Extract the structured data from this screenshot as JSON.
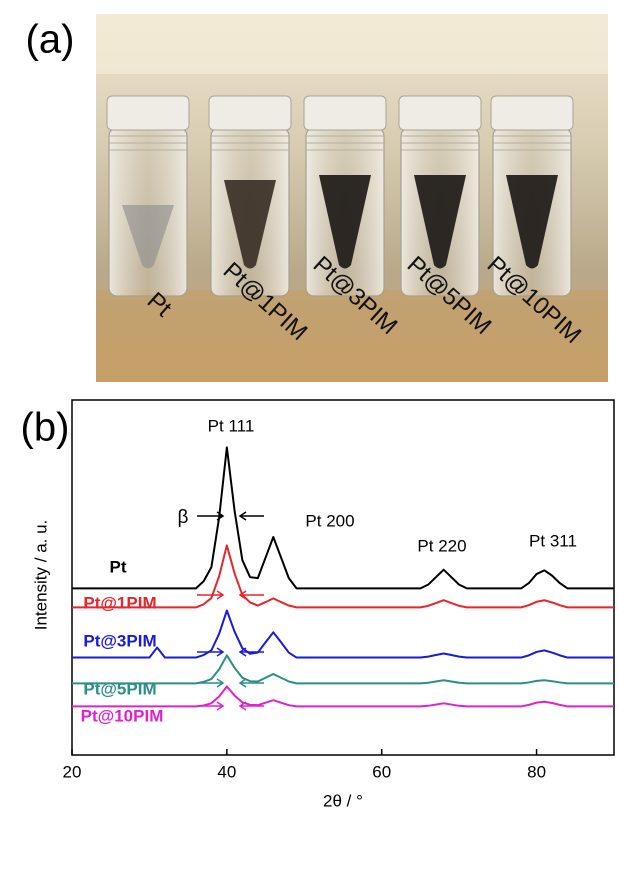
{
  "panel_labels": [
    "(a)",
    "(b)"
  ],
  "photo": {
    "labels": [
      "Pt",
      "Pt@1PIM",
      "Pt@3PIM",
      "Pt@5PIM",
      "Pt@10PIM"
    ]
  },
  "chart_data": {
    "type": "line",
    "x_label": "2θ / °",
    "y_label": "Intensity / a. u.",
    "annotations": [
      "Pt 111",
      "β",
      "Pt 200",
      "Pt 220",
      "Pt 311"
    ],
    "xlim": [
      20,
      90
    ],
    "xticks": [
      20,
      40,
      60,
      80
    ],
    "ylim": [
      -13,
      101
    ],
    "x": [
      20,
      21,
      22,
      23,
      24,
      25,
      26,
      27,
      28,
      29,
      30,
      31,
      32,
      33,
      34,
      35,
      36,
      37,
      38,
      39,
      40,
      41,
      42,
      43,
      44,
      45,
      46,
      47,
      48,
      49,
      50,
      51,
      52,
      53,
      54,
      55,
      56,
      57,
      58,
      59,
      60,
      61,
      62,
      63,
      64,
      65,
      66,
      67,
      68,
      69,
      70,
      71,
      72,
      73,
      74,
      75,
      76,
      77,
      78,
      79,
      80,
      81,
      82,
      83,
      84,
      85,
      86,
      87,
      88,
      89,
      90
    ],
    "series": [
      {
        "name": "Pt",
        "color": "#000000",
        "values": [
          40.5,
          40.5,
          40.5,
          40.5,
          40.5,
          40.5,
          40.5,
          40.5,
          40.5,
          40.5,
          40.5,
          40.5,
          40.5,
          40.5,
          40.5,
          40.5,
          40.5,
          42.8,
          47.3,
          63.2,
          85.8,
          65.4,
          49.6,
          44.1,
          43.8,
          50.4,
          57,
          50.4,
          43.8,
          40.5,
          40.5,
          40.5,
          40.5,
          40.5,
          40.5,
          40.5,
          40.5,
          40.5,
          40.5,
          40.5,
          40.5,
          40.5,
          40.5,
          40.5,
          40.5,
          40.5,
          41.7,
          44.1,
          46.5,
          44.1,
          41.7,
          40.5,
          40.5,
          40.5,
          40.5,
          40.5,
          40.5,
          40.5,
          40.5,
          42.2,
          45.1,
          46.3,
          44.6,
          42.2,
          40.5,
          40.5,
          40.5,
          40.5,
          40.5,
          40.5,
          40.5
        ]
      },
      {
        "name": "Pt@1PIM",
        "color": "#e8252a",
        "values": [
          34.4,
          34.4,
          34.4,
          34.4,
          34.4,
          34.4,
          34.4,
          34.4,
          34.4,
          34.4,
          34.4,
          34.4,
          34.4,
          34.4,
          34.4,
          34.4,
          34.4,
          35.4,
          37.4,
          44.4,
          54.3,
          45.3,
          38.4,
          36.0,
          35.0,
          36.1,
          37.3,
          36.1,
          35.0,
          34.4,
          34.4,
          34.4,
          34.4,
          34.4,
          34.4,
          34.4,
          34.4,
          34.4,
          34.4,
          34.4,
          34.4,
          34.4,
          34.4,
          34.4,
          34.4,
          34.4,
          34.9,
          35.8,
          36.7,
          35.8,
          34.9,
          34.4,
          34.4,
          34.4,
          34.4,
          34.4,
          34.4,
          34.4,
          34.4,
          35.1,
          36.2,
          36.7,
          36.0,
          35.1,
          34.4,
          34.4,
          34.4,
          34.4,
          34.4,
          34.4,
          34.4
        ]
      },
      {
        "name": "Pt@3PIM",
        "color": "#1a1adb",
        "values": [
          18.3,
          18.3,
          18.3,
          18.3,
          18.3,
          18.3,
          18.3,
          18.3,
          18.3,
          18.3,
          18.3,
          21.5,
          18.3,
          18.3,
          18.3,
          18.3,
          18.3,
          19.1,
          20.6,
          25.9,
          33.4,
          26.6,
          21.3,
          19.5,
          19.9,
          23.2,
          26.4,
          23.2,
          19.9,
          18.3,
          18.3,
          18.3,
          18.3,
          18.3,
          18.3,
          18.3,
          18.3,
          18.3,
          18.3,
          18.3,
          18.3,
          18.3,
          18.3,
          18.3,
          18.3,
          18.3,
          18.6,
          19.1,
          19.6,
          19.1,
          18.6,
          18.3,
          18.3,
          18.3,
          18.3,
          18.3,
          18.3,
          18.3,
          18.3,
          19.0,
          20.1,
          20.6,
          19.9,
          19.0,
          18.3,
          18.3,
          18.3,
          18.3,
          18.3,
          18.3,
          18.3
        ]
      },
      {
        "name": "Pt@5PIM",
        "color": "#2a8f86",
        "values": [
          10,
          10,
          10,
          10,
          10,
          10,
          10,
          10,
          10,
          10,
          10,
          10,
          10,
          10,
          10,
          10,
          10,
          10.5,
          11.4,
          14.5,
          19,
          15,
          11.8,
          10.7,
          10.6,
          11.8,
          13,
          11.8,
          10.6,
          10,
          10,
          10,
          10,
          10,
          10,
          10,
          10,
          10,
          10,
          10,
          10,
          10,
          10,
          10,
          10,
          10,
          10.2,
          10.6,
          11,
          10.6,
          10.2,
          10,
          10,
          10,
          10,
          10,
          10,
          10,
          10,
          10.3,
          10.8,
          11,
          10.7,
          10.3,
          10,
          10,
          10,
          10,
          10,
          10,
          10
        ]
      },
      {
        "name": "Pt@10PIM",
        "color": "#e020d0",
        "values": [
          2.6,
          2.6,
          2.6,
          2.6,
          2.6,
          2.6,
          2.6,
          2.6,
          2.6,
          2.6,
          2.6,
          2.6,
          2.6,
          2.6,
          2.6,
          2.6,
          2.6,
          2.9,
          3.6,
          5.8,
          9,
          6.1,
          3.9,
          3.1,
          3,
          3.8,
          4.6,
          3.8,
          3,
          2.6,
          2.6,
          2.6,
          2.6,
          2.6,
          2.6,
          2.6,
          2.6,
          2.6,
          2.6,
          2.6,
          2.6,
          2.6,
          2.6,
          2.6,
          2.6,
          2.6,
          2.8,
          3.2,
          3.6,
          3.2,
          2.8,
          2.6,
          2.6,
          2.6,
          2.6,
          2.6,
          2.6,
          2.6,
          2.6,
          3.1,
          3.8,
          4.1,
          3.7,
          3.1,
          2.6,
          2.6,
          2.6,
          2.6,
          2.6,
          2.6,
          2.6
        ]
      }
    ]
  }
}
